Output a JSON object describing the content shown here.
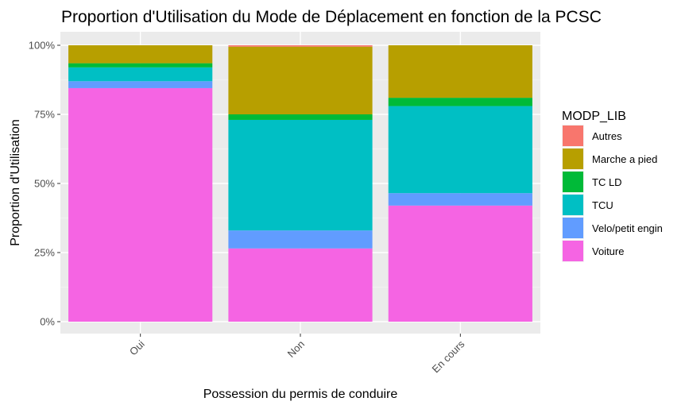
{
  "chart_data": {
    "type": "bar",
    "stacked": true,
    "title": "Proportion d'Utilisation du Mode de Déplacement en fonction de la PCSC",
    "xlabel": "Possession du permis de conduire",
    "ylabel": "Proportion d'Utilisation",
    "ylim": [
      0,
      1
    ],
    "yticks": [
      "0%",
      "25%",
      "50%",
      "75%",
      "100%"
    ],
    "grid": true,
    "legend_position": "right",
    "legend_title": "MODP_LIB",
    "categories": [
      "Oui",
      "Non",
      "En cours"
    ],
    "series": [
      {
        "name": "Voiture",
        "color": "#F564E3",
        "values": [
          0.845,
          0.265,
          0.42
        ]
      },
      {
        "name": "Velo/petit engin",
        "color": "#619CFF",
        "values": [
          0.025,
          0.065,
          0.045
        ]
      },
      {
        "name": "TCU",
        "color": "#00BFC4",
        "values": [
          0.05,
          0.4,
          0.315
        ]
      },
      {
        "name": "TC LD",
        "color": "#00BA38",
        "values": [
          0.015,
          0.02,
          0.03
        ]
      },
      {
        "name": "Marche a pied",
        "color": "#B79F00",
        "values": [
          0.065,
          0.245,
          0.19
        ]
      },
      {
        "name": "Autres",
        "color": "#F8766D",
        "values": [
          0.0,
          0.005,
          0.0
        ]
      }
    ],
    "legend_order": [
      "Autres",
      "Marche a pied",
      "TC LD",
      "TCU",
      "Velo/petit engin",
      "Voiture"
    ]
  },
  "colors": {
    "panel_bg": "#EBEBEB",
    "grid_major": "#FFFFFF",
    "text": "#000000",
    "tick_text": "#4D4D4D"
  }
}
